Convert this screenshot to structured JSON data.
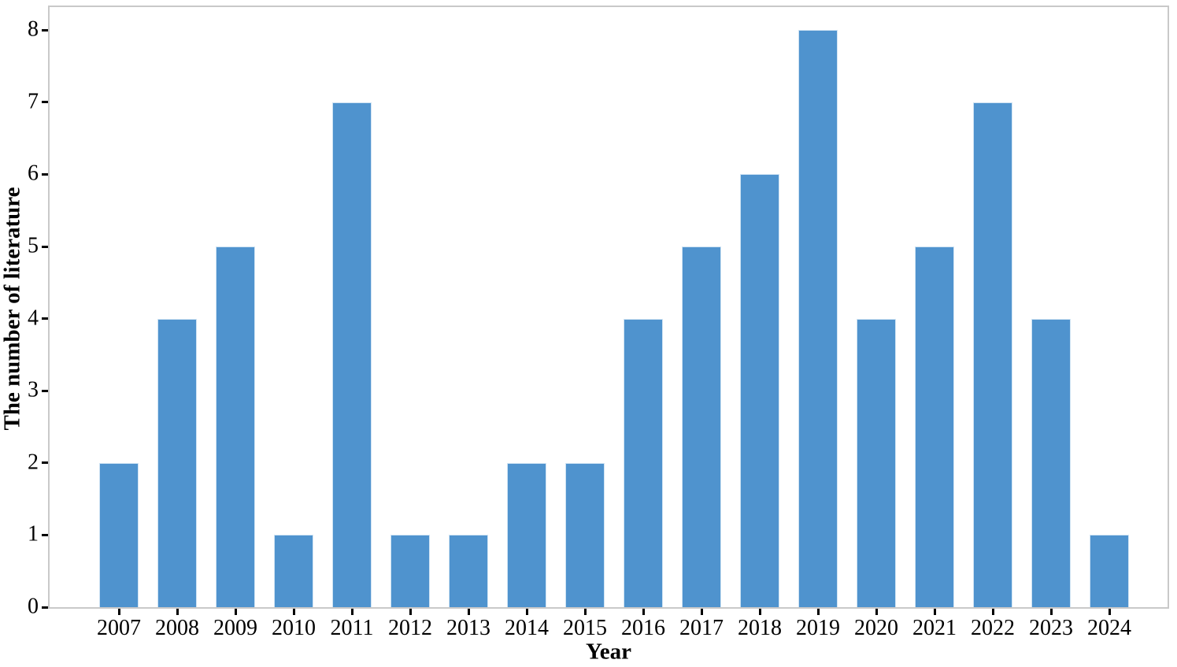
{
  "figure": {
    "background_color": "#ffffff",
    "spine_color": "#c9c9c9",
    "tick_color": "#000000",
    "text_color": "#000000"
  },
  "chart_data": {
    "type": "bar",
    "title": "",
    "xlabel": "Year",
    "ylabel": "The number of literature",
    "categories": [
      "2007",
      "2008",
      "2009",
      "2010",
      "2011",
      "2012",
      "2013",
      "2014",
      "2015",
      "2016",
      "2017",
      "2018",
      "2019",
      "2020",
      "2021",
      "2022",
      "2023",
      "2024"
    ],
    "values": [
      2,
      4,
      5,
      1,
      7,
      1,
      1,
      2,
      2,
      4,
      5,
      6,
      8,
      4,
      5,
      7,
      4,
      1
    ],
    "yticks": [
      0,
      1,
      2,
      3,
      4,
      5,
      6,
      7,
      8
    ],
    "ylim": [
      0,
      8.32
    ],
    "grid": false,
    "legend": "none",
    "bar_color": "#4F93CE",
    "bar_edge_color": "#CFE3F3"
  }
}
